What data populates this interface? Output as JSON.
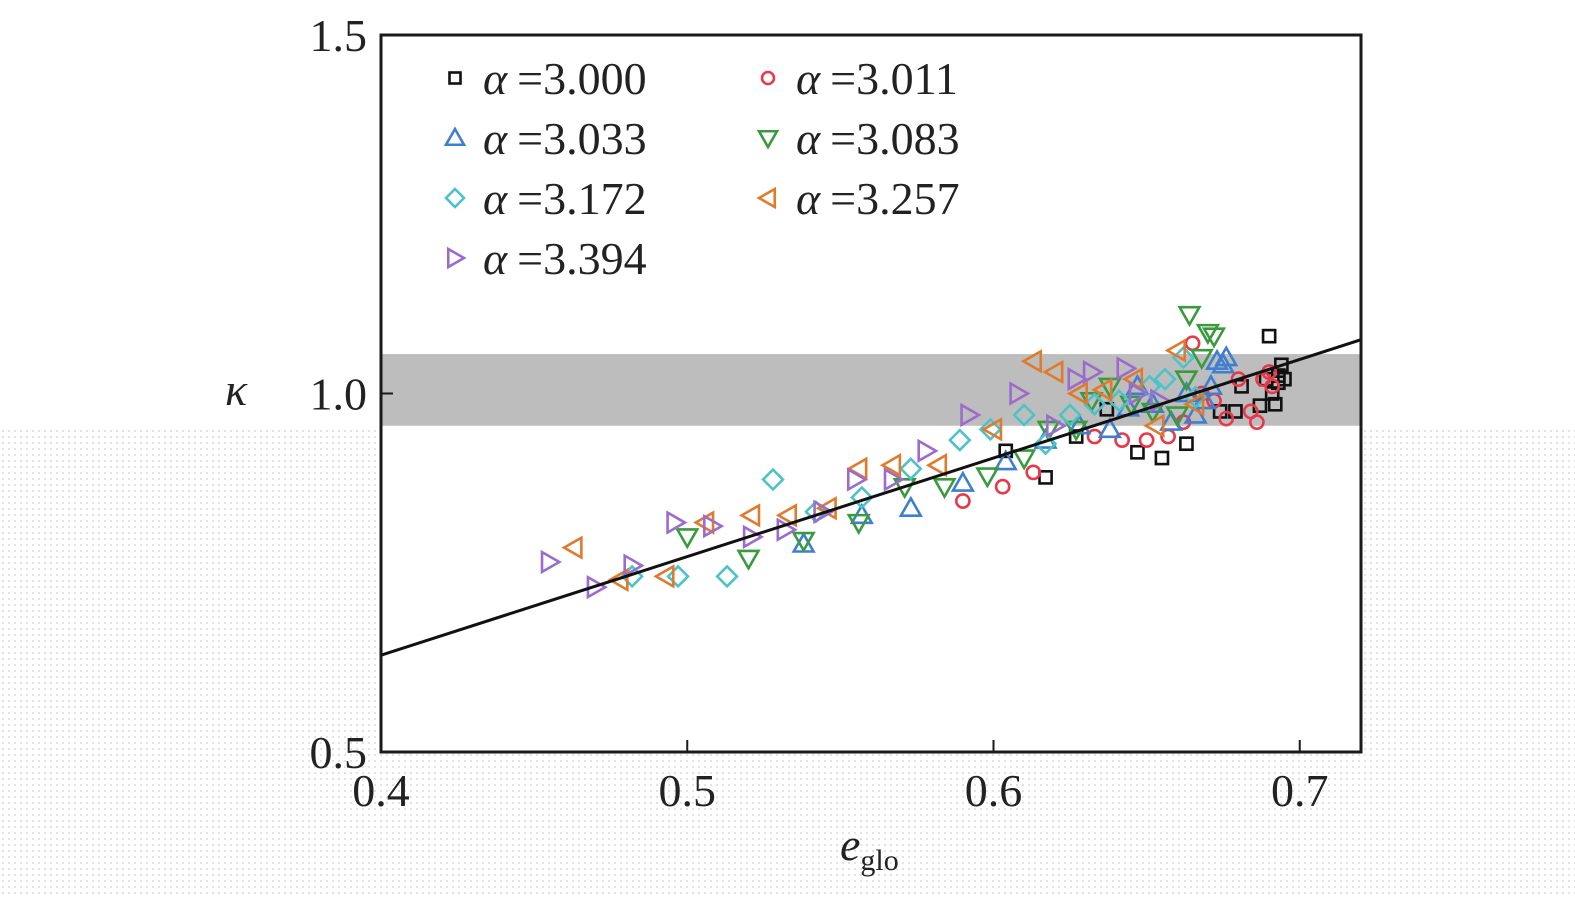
{
  "colors": {
    "frame": "#1a1a1a",
    "band": "#bdbdbd",
    "fit_line": "#111111"
  },
  "chart_data": {
    "type": "scatter",
    "title": "",
    "xlabel": {
      "main": "e",
      "sub": "glo"
    },
    "ylabel": "κ",
    "xlim": [
      0.4,
      0.72
    ],
    "ylim": [
      0.5,
      1.5
    ],
    "x_ticks": [
      "0.4",
      "0.5",
      "0.6",
      "0.7"
    ],
    "y_ticks": [
      "0.5",
      "1.0",
      "1.5"
    ],
    "grid": false,
    "legend_position": "top-left",
    "band": {
      "y_from": 0.955,
      "y_to": 1.055,
      "color": "#bdbdbd"
    },
    "fit_line": {
      "x": [
        0.4,
        0.72
      ],
      "y": [
        0.635,
        1.075
      ]
    },
    "series": [
      {
        "label_prefix": "α",
        "label_value": "=3.000",
        "marker": "square",
        "color": "#111111",
        "points": [
          [
            0.604,
            0.92
          ],
          [
            0.617,
            0.883
          ],
          [
            0.627,
            0.94
          ],
          [
            0.637,
            0.978
          ],
          [
            0.647,
            0.918
          ],
          [
            0.655,
            0.91
          ],
          [
            0.663,
            0.93
          ],
          [
            0.674,
            0.975
          ],
          [
            0.679,
            0.975
          ],
          [
            0.681,
            1.01
          ],
          [
            0.687,
            0.983
          ],
          [
            0.689,
            1.02
          ],
          [
            0.69,
            1.08
          ],
          [
            0.691,
            1.0
          ],
          [
            0.692,
            0.985
          ],
          [
            0.693,
            1.015
          ],
          [
            0.693,
            1.025
          ],
          [
            0.694,
            1.04
          ],
          [
            0.695,
            1.02
          ]
        ]
      },
      {
        "label_prefix": "α",
        "label_value": "=3.011",
        "marker": "circle",
        "color": "#e8394a",
        "points": [
          [
            0.59,
            0.85
          ],
          [
            0.603,
            0.87
          ],
          [
            0.613,
            0.89
          ],
          [
            0.633,
            0.94
          ],
          [
            0.642,
            0.935
          ],
          [
            0.65,
            0.935
          ],
          [
            0.657,
            0.94
          ],
          [
            0.662,
            0.96
          ],
          [
            0.665,
            1.07
          ],
          [
            0.668,
            1.0
          ],
          [
            0.672,
            0.99
          ],
          [
            0.676,
            0.965
          ],
          [
            0.68,
            1.02
          ],
          [
            0.684,
            0.975
          ],
          [
            0.686,
            0.96
          ],
          [
            0.688,
            1.02
          ],
          [
            0.69,
            1.03
          ],
          [
            0.691,
            1.01
          ]
        ]
      },
      {
        "label_prefix": "α",
        "label_value": "=3.033",
        "marker": "triangle-up",
        "color": "#3f7fd0",
        "points": [
          [
            0.538,
            0.79
          ],
          [
            0.557,
            0.83
          ],
          [
            0.573,
            0.84
          ],
          [
            0.59,
            0.875
          ],
          [
            0.604,
            0.905
          ],
          [
            0.617,
            0.935
          ],
          [
            0.628,
            0.955
          ],
          [
            0.638,
            0.95
          ],
          [
            0.644,
            0.98
          ],
          [
            0.647,
            1.01
          ],
          [
            0.652,
            0.985
          ],
          [
            0.658,
            0.96
          ],
          [
            0.663,
            1.0
          ],
          [
            0.666,
            0.97
          ],
          [
            0.669,
            0.99
          ],
          [
            0.671,
            1.01
          ],
          [
            0.673,
            1.045
          ],
          [
            0.675,
            1.04
          ],
          [
            0.676,
            1.05
          ]
        ]
      },
      {
        "label_prefix": "α",
        "label_value": "=3.083",
        "marker": "triangle-down",
        "color": "#3a9a3e",
        "points": [
          [
            0.5,
            0.8
          ],
          [
            0.52,
            0.77
          ],
          [
            0.538,
            0.795
          ],
          [
            0.556,
            0.82
          ],
          [
            0.571,
            0.87
          ],
          [
            0.584,
            0.87
          ],
          [
            0.598,
            0.885
          ],
          [
            0.61,
            0.91
          ],
          [
            0.618,
            0.95
          ],
          [
            0.627,
            0.95
          ],
          [
            0.632,
            0.99
          ],
          [
            0.638,
            1.01
          ],
          [
            0.645,
            0.985
          ],
          [
            0.652,
            0.975
          ],
          [
            0.66,
            0.97
          ],
          [
            0.663,
            1.02
          ],
          [
            0.664,
            1.11
          ],
          [
            0.668,
            1.05
          ],
          [
            0.67,
            1.085
          ],
          [
            0.672,
            1.08
          ]
        ]
      },
      {
        "label_prefix": "α",
        "label_value": "=3.172",
        "marker": "diamond",
        "color": "#4cc3c8",
        "points": [
          [
            0.482,
            0.745
          ],
          [
            0.497,
            0.745
          ],
          [
            0.513,
            0.745
          ],
          [
            0.528,
            0.88
          ],
          [
            0.542,
            0.835
          ],
          [
            0.557,
            0.855
          ],
          [
            0.573,
            0.895
          ],
          [
            0.589,
            0.935
          ],
          [
            0.599,
            0.95
          ],
          [
            0.61,
            0.97
          ],
          [
            0.617,
            0.93
          ],
          [
            0.625,
            0.97
          ],
          [
            0.633,
            0.985
          ],
          [
            0.641,
            0.99
          ],
          [
            0.651,
            1.01
          ],
          [
            0.656,
            1.02
          ],
          [
            0.662,
            1.05
          ],
          [
            0.666,
            0.995
          ]
        ]
      },
      {
        "label_prefix": "α",
        "label_value": "=3.257",
        "marker": "triangle-left",
        "color": "#e07a2c",
        "points": [
          [
            0.463,
            0.785
          ],
          [
            0.478,
            0.74
          ],
          [
            0.493,
            0.745
          ],
          [
            0.506,
            0.82
          ],
          [
            0.521,
            0.83
          ],
          [
            0.533,
            0.83
          ],
          [
            0.546,
            0.84
          ],
          [
            0.556,
            0.895
          ],
          [
            0.567,
            0.9
          ],
          [
            0.582,
            0.9
          ],
          [
            0.6,
            0.95
          ],
          [
            0.613,
            1.045
          ],
          [
            0.62,
            1.03
          ],
          [
            0.628,
            1.0
          ],
          [
            0.636,
            1.005
          ],
          [
            0.646,
            1.02
          ],
          [
            0.653,
            0.955
          ],
          [
            0.66,
            1.06
          ],
          [
            0.666,
            0.985
          ]
        ]
      },
      {
        "label_prefix": "α",
        "label_value": "=3.394",
        "marker": "triangle-right",
        "color": "#9b6ccc",
        "points": [
          [
            0.455,
            0.765
          ],
          [
            0.47,
            0.73
          ],
          [
            0.482,
            0.76
          ],
          [
            0.496,
            0.82
          ],
          [
            0.508,
            0.815
          ],
          [
            0.521,
            0.8
          ],
          [
            0.532,
            0.81
          ],
          [
            0.544,
            0.835
          ],
          [
            0.555,
            0.88
          ],
          [
            0.567,
            0.88
          ],
          [
            0.578,
            0.92
          ],
          [
            0.592,
            0.97
          ],
          [
            0.608,
            1.0
          ],
          [
            0.62,
            0.955
          ],
          [
            0.627,
            1.02
          ],
          [
            0.632,
            1.03
          ],
          [
            0.643,
            1.035
          ],
          [
            0.647,
            1.0
          ],
          [
            0.654,
            0.99
          ]
        ]
      }
    ]
  }
}
